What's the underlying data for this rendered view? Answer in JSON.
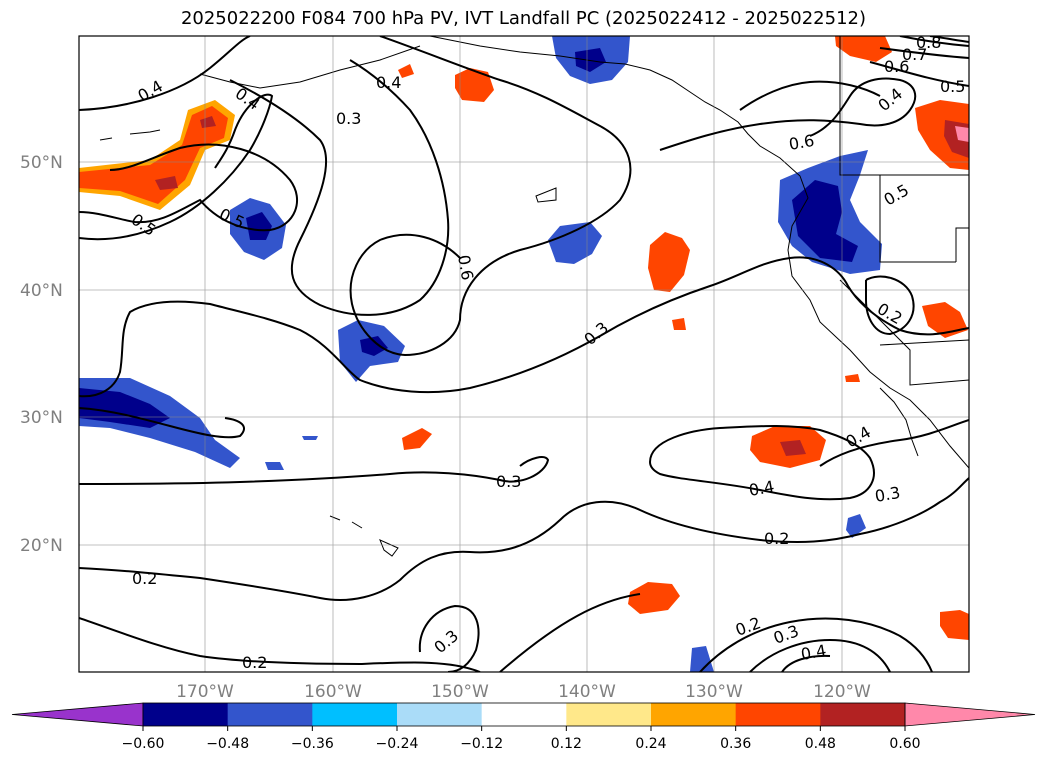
{
  "title": "2025022200 F084 700 hPa PV, IVT Landfall PC (2025022412 - 2025022512)",
  "lat_labels": [
    "50°N",
    "40°N",
    "30°N",
    "20°N"
  ],
  "lon_labels": [
    "170°W",
    "160°W",
    "150°W",
    "140°W",
    "130°W",
    "120°W"
  ],
  "contour_labels": [
    "0.4",
    "0.4",
    "0.5",
    "0.5",
    "0.3",
    "0.4",
    "0.6",
    "0.3",
    "0.3",
    "0.2",
    "0.2",
    "0.3",
    "0.6",
    "0.8",
    "0.7",
    "0.6",
    "0.5",
    "0.4",
    "0.5",
    "0.2",
    "0.4",
    "0.4",
    "0.3",
    "0.2",
    "0.2",
    "0.3",
    "0.4"
  ],
  "colorbar": {
    "ticks": [
      "−0.60",
      "−0.48",
      "−0.36",
      "−0.24",
      "−0.12",
      "0.12",
      "0.24",
      "0.36",
      "0.48",
      "0.60"
    ],
    "colors": [
      "#9933cc",
      "#00008b",
      "#3355cc",
      "#00bfff",
      "#aadcf8",
      "#ffffff",
      "#ffe88a",
      "#ffa500",
      "#ff4500",
      "#b22222",
      "#ff88aa"
    ]
  }
}
